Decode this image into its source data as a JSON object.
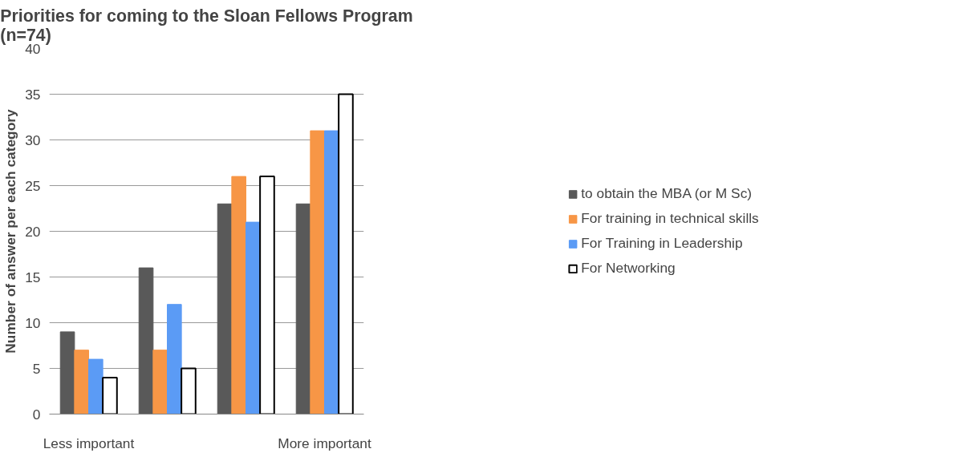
{
  "chart_data": {
    "type": "bar",
    "title": "Priorities for coming to the Sloan Fellows Program\n(n=74)",
    "ylabel": "Number of answer per each category",
    "categories": [
      "Less important",
      null,
      null,
      "More important"
    ],
    "series": [
      {
        "name": "to obtain the MBA (or M Sc)",
        "color": "#595959",
        "values": [
          9,
          16,
          23,
          23
        ]
      },
      {
        "name": "For training in technical skills",
        "color": "#f79646",
        "values": [
          7,
          7,
          26,
          31
        ]
      },
      {
        "name": "For Training in Leadership",
        "color": "#5b9bf5",
        "values": [
          6,
          12,
          21,
          31
        ]
      },
      {
        "name": "For Networking",
        "color": "#ffffff",
        "values": [
          4,
          5,
          26,
          35
        ]
      }
    ],
    "ylim": [
      0,
      40
    ],
    "yticks": [
      0,
      5,
      10,
      15,
      20,
      25,
      30,
      35,
      40
    ],
    "grid": "y",
    "legend": "right"
  }
}
